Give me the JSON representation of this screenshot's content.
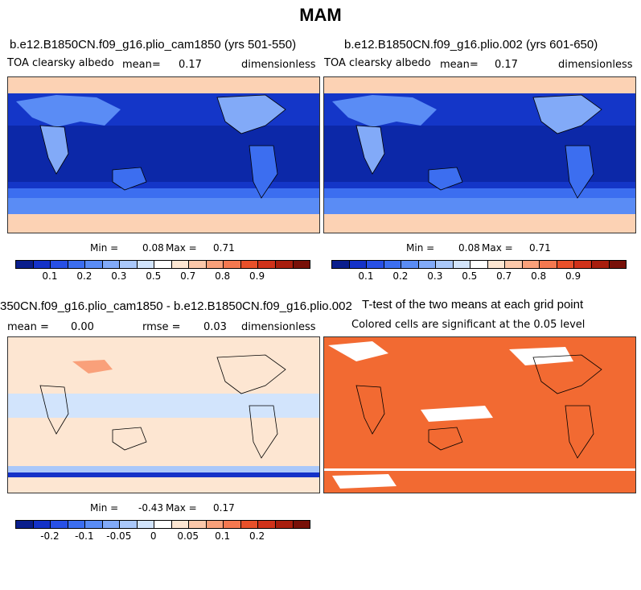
{
  "season": "MAM",
  "panels": {
    "p1": {
      "case": "b.e12.B1850CN.f09_g16.plio_cam1850 (yrs 501-550)",
      "var": "TOA clearsky albedo",
      "mean_label": "mean=",
      "mean_value": "0.17",
      "units": "dimensionless",
      "min_label": "Min =",
      "min_value": "0.08",
      "max_label": "Max =",
      "max_value": "0.71"
    },
    "p2": {
      "case": "b.e12.B1850CN.f09_g16.plio.002 (yrs 601-650)",
      "var": "TOA clearsky albedo",
      "mean_label": "mean=",
      "mean_value": "0.17",
      "units": "dimensionless",
      "min_label": "Min =",
      "min_value": "0.08",
      "max_label": "Max =",
      "max_value": "0.71"
    },
    "p3": {
      "case": "350CN.f09_g16.plio_cam1850 - b.e12.B1850CN.f09_g16.plio.002",
      "mean_label": "mean =",
      "mean_value": "0.00",
      "rmse_label": "rmse =",
      "rmse_value": "0.03",
      "units": "dimensionless",
      "min_label": "Min =",
      "min_value": "-0.43",
      "max_label": "Max =",
      "max_value": "0.17"
    },
    "p4": {
      "title": "T-test of the two means at each grid point",
      "subtitle": "Colored cells are significant at the 0.05 level"
    }
  },
  "colorbars": {
    "abs_colors": [
      "#0a1e8c",
      "#1432c8",
      "#2850e6",
      "#3c6ef0",
      "#5a8cf5",
      "#82aaf8",
      "#aac8fa",
      "#d2e4fc",
      "#ffffff",
      "#fde6d2",
      "#fcc8aa",
      "#f9a07a",
      "#f47850",
      "#e8502a",
      "#d0321a",
      "#a81e0e",
      "#781008"
    ],
    "abs_ticks": [
      "0.1",
      "0.2",
      "0.3",
      "0.5",
      "0.7",
      "0.8",
      "0.9"
    ],
    "diff_colors": [
      "#0a1e8c",
      "#1432c8",
      "#2850e6",
      "#3c6ef0",
      "#5a8cf5",
      "#82aaf8",
      "#aac8fa",
      "#d2e4fc",
      "#ffffff",
      "#fde6d2",
      "#fcc8aa",
      "#f9a07a",
      "#f47850",
      "#e8502a",
      "#d0321a",
      "#a81e0e",
      "#781008"
    ],
    "diff_ticks": [
      "-0.2",
      "-0.1",
      "-0.05",
      "0",
      "0.05",
      "0.1",
      "0.2"
    ]
  },
  "colors": {
    "ocean_abs": "#1436c8",
    "deep_ocean_abs": "#0c28a8",
    "polar_abs": "#fcd2b4",
    "diff_bg": "#fde6d2",
    "diff_blue": "#d2e4fc",
    "sig": "#f26a32"
  }
}
